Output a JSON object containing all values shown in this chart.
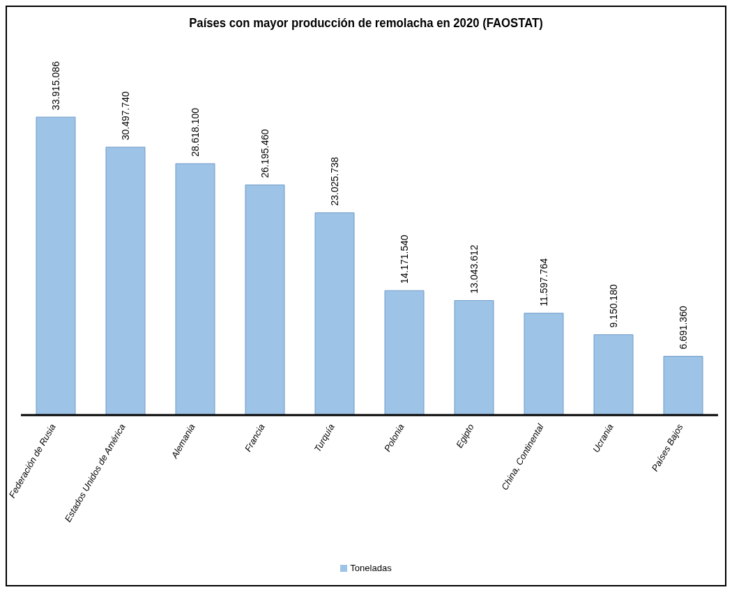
{
  "chart_data": {
    "type": "bar",
    "title": "Países con mayor producción de remolacha en 2020 (FAOSTAT)",
    "categories": [
      "Federación de Rusia",
      "Estados Unidos de América",
      "Alemania",
      "Francia",
      "Turquía",
      "Polonia",
      "Egipto",
      "China, Continental",
      "Ucrania",
      "Países Bajos"
    ],
    "series": [
      {
        "name": "Toneladas",
        "color": "#9dc3e6",
        "values": [
          33915086,
          30497740,
          28618100,
          26195460,
          23025738,
          14171540,
          13043612,
          11597764,
          9150180,
          6691360
        ],
        "value_labels": [
          "33.915.086",
          "30.497.740",
          "28.618.100",
          "26.195.460",
          "23.025.738",
          "14.171.540",
          "13.043.612",
          "11.597.764",
          "9.150.180",
          "6.691.360"
        ]
      }
    ],
    "legend": "bottom",
    "grid": false
  }
}
